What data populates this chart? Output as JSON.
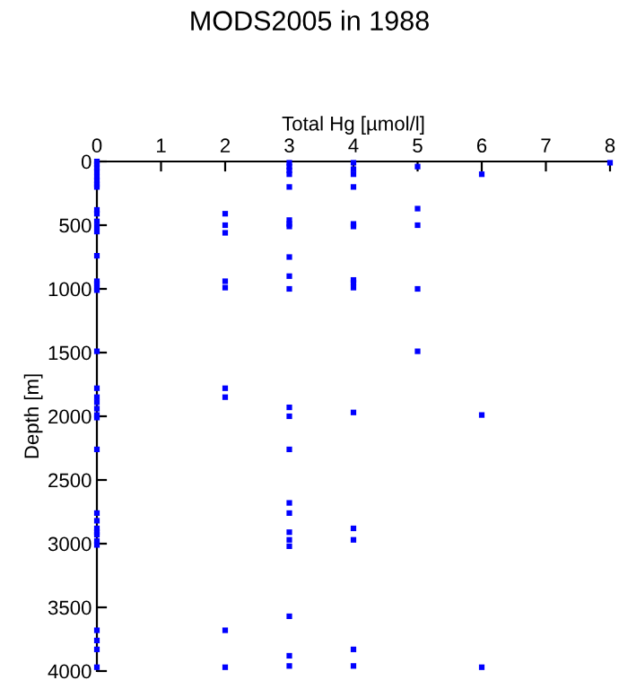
{
  "chart_data": {
    "type": "scatter",
    "title": "MODS2005 in 1988",
    "xlabel": "Total Hg [µmol/l]",
    "ylabel": "Depth [m]",
    "xlim": [
      0,
      8
    ],
    "xticks": [
      0,
      1,
      2,
      3,
      4,
      5,
      6,
      7,
      8
    ],
    "ylim": [
      4000,
      0
    ],
    "yticks": [
      0,
      500,
      1000,
      1500,
      2000,
      2500,
      3000,
      3500,
      4000
    ],
    "marker": "square",
    "grid": false,
    "series": [
      {
        "color": "#0000ff",
        "x": [
          0,
          0,
          0,
          0,
          0,
          0,
          0,
          0,
          0,
          0,
          0,
          0,
          0,
          0,
          0,
          0,
          0,
          0,
          0,
          0,
          0,
          0,
          0,
          0,
          0,
          0,
          0,
          0,
          0,
          0,
          0,
          0,
          0,
          0,
          0,
          0,
          0,
          2,
          2,
          2,
          2,
          2,
          2,
          2,
          2,
          2,
          3,
          3,
          3,
          3,
          3,
          3,
          3,
          3,
          3,
          3,
          3,
          3,
          3,
          3,
          3,
          3,
          3,
          3,
          3,
          3,
          3,
          3,
          4,
          4,
          4,
          4,
          4,
          4,
          4,
          4,
          4,
          4,
          4,
          4,
          4,
          4,
          5,
          5,
          5,
          5,
          5,
          6,
          6,
          6,
          8
        ],
        "values": [
          0,
          20,
          50,
          80,
          120,
          150,
          180,
          200,
          380,
          410,
          470,
          510,
          550,
          740,
          940,
          960,
          990,
          1010,
          1490,
          1780,
          1850,
          1890,
          1940,
          1990,
          2010,
          2260,
          2760,
          2820,
          2880,
          2910,
          2930,
          2980,
          3010,
          3680,
          3760,
          3830,
          3970,
          410,
          500,
          560,
          940,
          990,
          1780,
          1850,
          3680,
          3970,
          10,
          40,
          70,
          100,
          200,
          460,
          490,
          510,
          750,
          900,
          1000,
          1930,
          2000,
          2260,
          2680,
          2760,
          2910,
          2970,
          3020,
          3570,
          3880,
          3960,
          10,
          60,
          100,
          200,
          490,
          510,
          930,
          950,
          990,
          1970,
          2880,
          2970,
          3830,
          3960,
          40,
          370,
          500,
          1000,
          1490,
          100,
          1990,
          3970,
          10
        ]
      }
    ]
  }
}
